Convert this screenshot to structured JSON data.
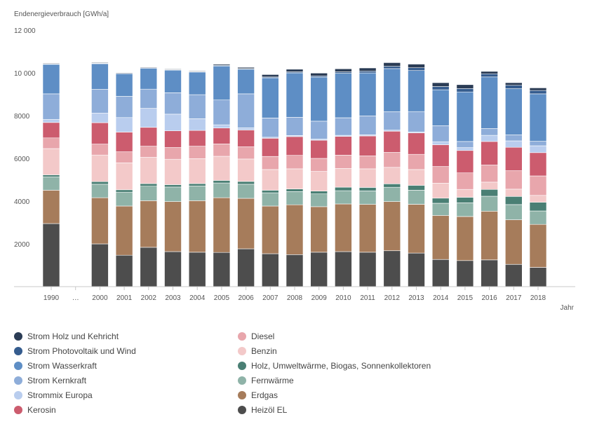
{
  "chart_data": {
    "type": "bar",
    "stacked": true,
    "ylabel": "Endenergieverbrauch [GWh/a]",
    "xlabel": "Jahr",
    "ylim": [
      0,
      12000
    ],
    "yticks": [
      "2000",
      "4000",
      "6000",
      "8000",
      "10 000",
      "12 000"
    ],
    "categories": [
      "1990",
      "…",
      "2000",
      "2001",
      "2002",
      "2003",
      "2004",
      "2005",
      "2006",
      "2007",
      "2008",
      "2009",
      "2010",
      "2011",
      "2012",
      "2013",
      "2014",
      "2015",
      "2016",
      "2017",
      "2018"
    ],
    "grid": false,
    "legend_position": "bottom",
    "series": [
      {
        "name": "Heizöl EL",
        "color": "#4d4d4d",
        "values": [
          2950,
          null,
          2000,
          1470,
          1840,
          1640,
          1610,
          1600,
          1770,
          1540,
          1500,
          1610,
          1640,
          1610,
          1680,
          1570,
          1270,
          1220,
          1250,
          1040,
          900
        ]
      },
      {
        "name": "Erdgas",
        "color": "#a67c5b",
        "values": [
          1560,
          null,
          2160,
          2300,
          2180,
          2340,
          2410,
          2560,
          2360,
          2230,
          2330,
          2130,
          2230,
          2240,
          2300,
          2280,
          2060,
          2060,
          2280,
          2090,
          2010
        ]
      },
      {
        "name": "Fernwärme",
        "color": "#8fb3a8",
        "values": [
          620,
          null,
          630,
          650,
          680,
          680,
          690,
          690,
          660,
          620,
          620,
          600,
          620,
          630,
          670,
          660,
          570,
          640,
          700,
          710,
          630
        ]
      },
      {
        "name": "Holz, Umweltwärme, Biogas, Sonnenkollektoren",
        "color": "#4a7f74",
        "values": [
          100,
          null,
          120,
          110,
          120,
          110,
          110,
          120,
          130,
          120,
          120,
          130,
          160,
          160,
          160,
          230,
          240,
          260,
          320,
          380,
          410
        ]
      },
      {
        "name": "Benzin",
        "color": "#f3c9c9",
        "values": [
          1230,
          null,
          1250,
          1260,
          1230,
          1190,
          1170,
          1130,
          1050,
          970,
          940,
          920,
          880,
          870,
          770,
          740,
          700,
          370,
          340,
          340,
          320
        ]
      },
      {
        "name": "Diesel",
        "color": "#e8a6ac",
        "values": [
          500,
          null,
          510,
          520,
          520,
          550,
          580,
          580,
          570,
          610,
          630,
          610,
          620,
          610,
          700,
          710,
          780,
          770,
          800,
          860,
          910
        ]
      },
      {
        "name": "Kerosin",
        "color": "#cc5c6e",
        "values": [
          720,
          null,
          1000,
          920,
          880,
          780,
          740,
          740,
          790,
          850,
          880,
          850,
          880,
          930,
          990,
          1000,
          1020,
          1050,
          1100,
          1100,
          1090
        ]
      },
      {
        "name": "Strommix Europa",
        "color": "#b9cdee",
        "values": [
          140,
          null,
          450,
          680,
          890,
          780,
          550,
          150,
          100,
          50,
          50,
          50,
          50,
          50,
          50,
          50,
          140,
          130,
          290,
          300,
          320
        ]
      },
      {
        "name": "Strom Kernkraft",
        "color": "#8eadd9",
        "values": [
          1200,
          null,
          1110,
          990,
          900,
          1000,
          1120,
          1160,
          1590,
          900,
          850,
          840,
          820,
          890,
          860,
          950,
          750,
          290,
          320,
          280,
          210
        ]
      },
      {
        "name": "Strom Wasserkraft",
        "color": "#5e8ec5",
        "values": [
          1380,
          null,
          1200,
          1060,
          980,
          1060,
          1060,
          1590,
          1150,
          1880,
          2080,
          2060,
          2080,
          2010,
          2020,
          1920,
          1680,
          2320,
          2410,
          2160,
          2220
        ]
      },
      {
        "name": "Strom Photovoltaik und Wind",
        "color": "#355c8e",
        "values": [
          20,
          null,
          20,
          20,
          20,
          20,
          20,
          30,
          30,
          40,
          50,
          60,
          70,
          80,
          110,
          130,
          150,
          160,
          150,
          160,
          160
        ]
      },
      {
        "name": "Strom Holz und Kehricht",
        "color": "#2b3c55",
        "values": [
          30,
          null,
          30,
          30,
          30,
          30,
          30,
          50,
          60,
          110,
          120,
          130,
          140,
          150,
          170,
          170,
          180,
          180,
          110,
          120,
          120
        ]
      }
    ]
  },
  "legend": {
    "left": [
      {
        "label": "Strom Holz und Kehricht",
        "color": "#2b3c55",
        "icon": "circle-icon"
      },
      {
        "label": "Strom Photovoltaik und Wind",
        "color": "#355c8e",
        "icon": "circle-icon"
      },
      {
        "label": "Strom Wasserkraft",
        "color": "#5e8ec5",
        "icon": "circle-icon"
      },
      {
        "label": "Strom Kernkraft",
        "color": "#8eadd9",
        "icon": "circle-icon"
      },
      {
        "label": "Strommix Europa",
        "color": "#b9cdee",
        "icon": "circle-icon"
      },
      {
        "label": "Kerosin",
        "color": "#cc5c6e",
        "icon": "circle-icon"
      }
    ],
    "right": [
      {
        "label": "Diesel",
        "color": "#e8a6ac",
        "icon": "circle-icon"
      },
      {
        "label": "Benzin",
        "color": "#f3c9c9",
        "icon": "circle-icon"
      },
      {
        "label": "Holz, Umweltwärme, Biogas, Sonnenkollektoren",
        "color": "#4a7f74",
        "icon": "circle-icon"
      },
      {
        "label": "Fernwärme",
        "color": "#8fb3a8",
        "icon": "circle-icon"
      },
      {
        "label": "Erdgas",
        "color": "#a67c5b",
        "icon": "circle-icon"
      },
      {
        "label": "Heizöl EL",
        "color": "#4d4d4d",
        "icon": "circle-icon"
      }
    ]
  }
}
